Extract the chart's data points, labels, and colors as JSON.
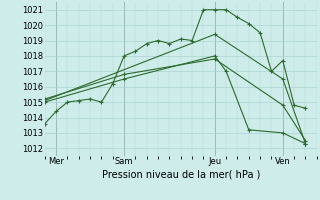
{
  "title": "",
  "xlabel": "Pression niveau de la mer( hPa )",
  "ylabel": "",
  "background_color": "#ceecea",
  "grid_color": "#aad4d0",
  "line_color": "#2d6a2d",
  "xlim": [
    0,
    12
  ],
  "ylim": [
    1011.5,
    1021.5
  ],
  "yticks": [
    1012,
    1013,
    1014,
    1015,
    1016,
    1017,
    1018,
    1019,
    1020,
    1021
  ],
  "xtick_labels": [
    "Mer",
    "Sam",
    "Jeu",
    "Ven"
  ],
  "xtick_positions": [
    0.5,
    3.5,
    7.5,
    10.5
  ],
  "vlines": [
    0.5,
    3.5,
    7.5,
    10.5
  ],
  "series": [
    {
      "x": [
        0.0,
        0.5,
        1.0,
        1.5,
        2.0,
        2.5,
        3.0,
        3.5,
        4.0,
        4.5,
        5.0,
        5.5,
        6.0,
        6.5,
        7.0,
        7.5,
        8.0,
        8.5,
        9.0,
        9.5,
        10.0,
        10.5,
        11.0,
        11.5
      ],
      "y": [
        1013.6,
        1014.4,
        1015.0,
        1015.1,
        1015.2,
        1015.0,
        1016.2,
        1018.0,
        1018.3,
        1018.8,
        1019.0,
        1018.8,
        1019.1,
        1019.0,
        1021.0,
        1021.0,
        1021.0,
        1020.5,
        1020.1,
        1019.5,
        1017.0,
        1017.7,
        1014.8,
        1014.6
      ]
    },
    {
      "x": [
        0.0,
        3.5,
        7.5,
        8.0,
        9.0,
        10.5,
        11.5
      ],
      "y": [
        1015.0,
        1016.5,
        1018.0,
        1017.0,
        1013.2,
        1013.0,
        1012.3
      ]
    },
    {
      "x": [
        0.0,
        3.5,
        7.5,
        10.5,
        11.5
      ],
      "y": [
        1015.2,
        1016.8,
        1017.8,
        1014.8,
        1012.5
      ]
    },
    {
      "x": [
        0.0,
        7.5,
        10.5,
        11.5
      ],
      "y": [
        1015.1,
        1019.4,
        1016.5,
        1012.3
      ]
    }
  ]
}
